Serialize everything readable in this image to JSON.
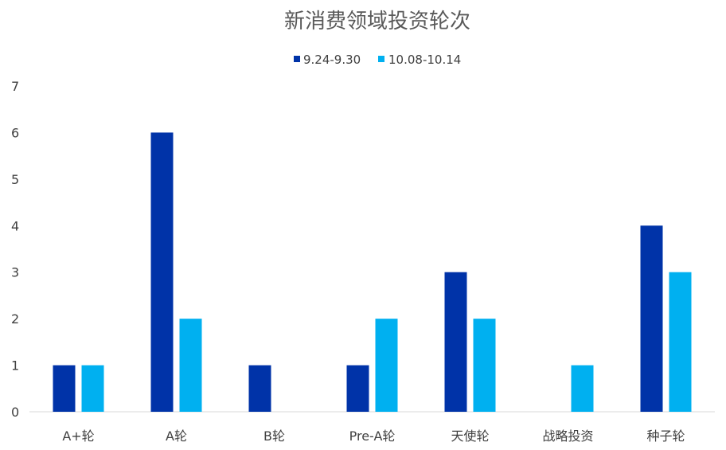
{
  "chart_data": {
    "type": "bar",
    "title": "新消费领域投资轮次",
    "categories": [
      "A+轮",
      "A轮",
      "B轮",
      "Pre-A轮",
      "天使轮",
      "战略投资",
      "种子轮"
    ],
    "series": [
      {
        "name": "9.24-9.30",
        "color": "#0033A8",
        "values": [
          1,
          6,
          1,
          1,
          3,
          0,
          4
        ]
      },
      {
        "name": "10.08-10.14",
        "color": "#00B0F0",
        "values": [
          1,
          2,
          0,
          2,
          2,
          1,
          3
        ]
      }
    ],
    "ylim": [
      0,
      7
    ],
    "yticks": [
      "0",
      "1",
      "2",
      "3",
      "4",
      "5",
      "6",
      "7"
    ],
    "xlabel": "",
    "ylabel": "",
    "grid": false,
    "legend_position": "top"
  }
}
